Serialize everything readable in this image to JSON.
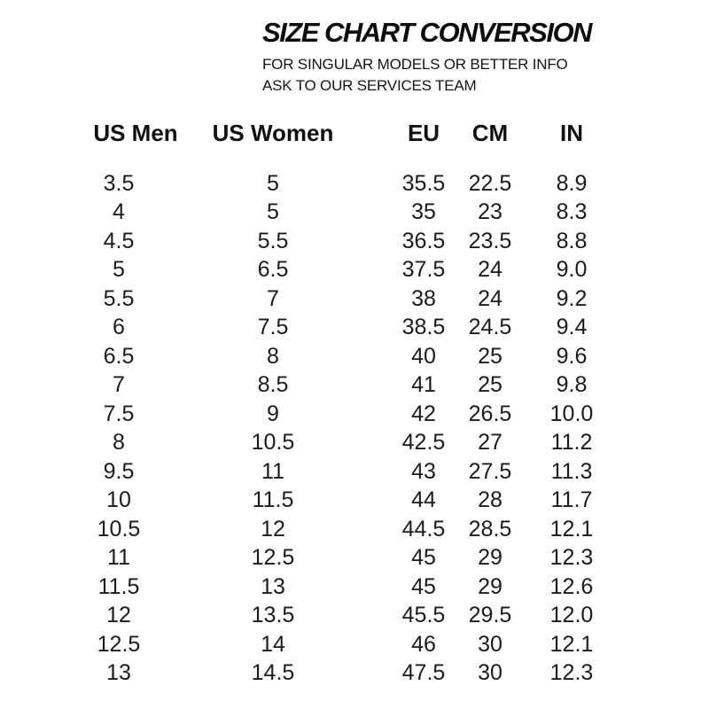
{
  "colors": {
    "background": "#ffffff",
    "text": "#161616"
  },
  "chart_data": {
    "type": "table",
    "title": "SIZE CHART CONVERSION",
    "subtitle": [
      "FOR SINGULAR MODELS OR BETTER INFO",
      "ASK TO OUR SERVICES TEAM"
    ],
    "columns": [
      "US Men",
      "US Women",
      "EU",
      "CM",
      "IN"
    ],
    "rows": [
      [
        "3.5",
        "5",
        "35.5",
        "22.5",
        "8.9"
      ],
      [
        "4",
        "5",
        "35",
        "23",
        "8.3"
      ],
      [
        "4.5",
        "5.5",
        "36.5",
        "23.5",
        "8.8"
      ],
      [
        "5",
        "6.5",
        "37.5",
        "24",
        "9.0"
      ],
      [
        "5.5",
        "7",
        "38",
        "24",
        "9.2"
      ],
      [
        "6",
        "7.5",
        "38.5",
        "24.5",
        "9.4"
      ],
      [
        "6.5",
        "8",
        "40",
        "25",
        "9.6"
      ],
      [
        "7",
        "8.5",
        "41",
        "25",
        "9.8"
      ],
      [
        "7.5",
        "9",
        "42",
        "26.5",
        "10.0"
      ],
      [
        "8",
        "10.5",
        "42.5",
        "27",
        "11.2"
      ],
      [
        "9.5",
        "11",
        "43",
        "27.5",
        "11.3"
      ],
      [
        "10",
        "11.5",
        "44",
        "28",
        "11.7"
      ],
      [
        "10.5",
        "12",
        "44.5",
        "28.5",
        "12.1"
      ],
      [
        "11",
        "12.5",
        "45",
        "29",
        "12.3"
      ],
      [
        "11.5",
        "13",
        "45",
        "29",
        "12.6"
      ],
      [
        "12",
        "13.5",
        "45.5",
        "29.5",
        "12.0"
      ],
      [
        "12.5",
        "14",
        "46",
        "30",
        "12.1"
      ],
      [
        "13",
        "14.5",
        "47.5",
        "30",
        "12.3"
      ]
    ]
  }
}
